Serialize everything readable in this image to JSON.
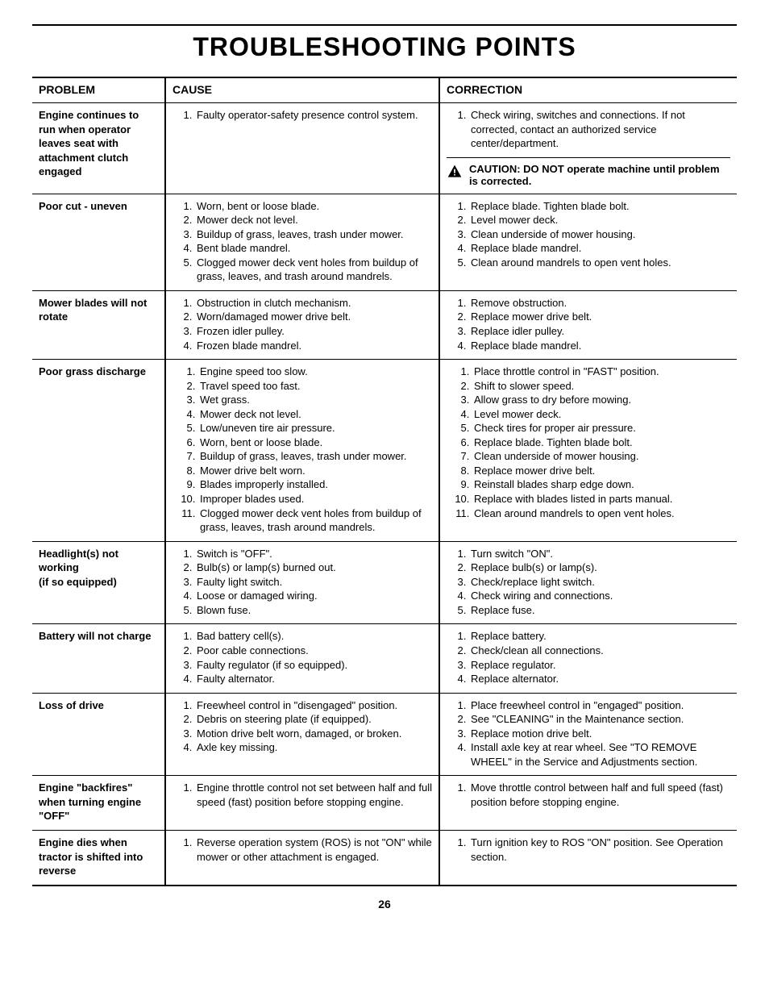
{
  "page": {
    "title": "TROUBLESHOOTING POINTS",
    "number": "26"
  },
  "headers": {
    "problem": "PROBLEM",
    "cause": "CAUSE",
    "correction": "CORRECTION"
  },
  "caution": "CAUTION: DO NOT operate machine until problem is corrected.",
  "rows": [
    {
      "problem": "Engine continues to run when operator leaves seat with attachment clutch engaged",
      "causes": [
        "Faulty operator-safety presence control system."
      ],
      "corrections": [
        "Check wiring, switches and connections. If not corrected, contact an authorized service center/department."
      ],
      "has_caution": true
    },
    {
      "problem": "Poor cut - uneven",
      "causes": [
        "Worn, bent or loose blade.",
        "Mower deck not level.",
        "Buildup of grass, leaves, trash under mower.",
        "Bent blade mandrel.",
        "Clogged mower deck vent holes from buildup of grass, leaves, and trash around mandrels."
      ],
      "corrections": [
        "Replace blade. Tighten blade bolt.",
        "Level mower deck.",
        "Clean underside of mower housing.",
        "Replace blade mandrel.",
        "Clean around mandrels to open vent holes."
      ]
    },
    {
      "problem": "Mower blades will not rotate",
      "causes": [
        "Obstruction in clutch mechanism.",
        "Worn/damaged mower drive belt.",
        "Frozen idler pulley.",
        "Frozen blade mandrel."
      ],
      "corrections": [
        "Remove obstruction.",
        "Replace mower drive belt.",
        "Replace idler pulley.",
        "Replace blade mandrel."
      ]
    },
    {
      "problem": "Poor grass discharge",
      "causes": [
        "Engine speed too slow.",
        "Travel speed too fast.",
        "Wet grass.",
        "Mower deck not level.",
        "Low/uneven tire air pressure.",
        "Worn, bent or loose blade.",
        "Buildup of grass, leaves, trash under mower.",
        "Mower drive belt worn.",
        "Blades improperly installed.",
        "Improper blades used.",
        "Clogged mower deck vent holes from buildup of grass, leaves, trash around mandrels."
      ],
      "corrections": [
        "Place throttle control in \"FAST\" position.",
        "Shift to slower speed.",
        "Allow grass to dry before mowing.",
        "Level mower deck.",
        "Check tires for proper air pressure.",
        "Replace blade. Tighten blade bolt.",
        "Clean underside of mower housing.",
        "Replace mower drive belt.",
        "Reinstall blades sharp edge down.",
        "Replace with blades listed in parts manual.",
        "Clean around mandrels to open vent holes."
      ]
    },
    {
      "problem": "Headlight(s) not working\n(if so equipped)",
      "causes": [
        "Switch is \"OFF\".",
        "Bulb(s) or lamp(s) burned out.",
        "Faulty light switch.",
        "Loose or damaged wiring.",
        "Blown fuse."
      ],
      "corrections": [
        "Turn switch \"ON\".",
        "Replace bulb(s) or lamp(s).",
        "Check/replace light switch.",
        "Check wiring and connections.",
        "Replace fuse."
      ]
    },
    {
      "problem": "Battery will not charge",
      "causes": [
        "Bad battery cell(s).",
        "Poor cable connections.",
        "Faulty regulator (if so equipped).",
        "Faulty alternator."
      ],
      "corrections": [
        "Replace battery.",
        "Check/clean all connections.",
        "Replace regulator.",
        "Replace alternator."
      ]
    },
    {
      "problem": "Loss of drive",
      "causes": [
        "Freewheel control in \"disengaged\" position.",
        "Debris on steering plate (if equipped).",
        "Motion drive belt worn, damaged, or broken.",
        "Axle key missing."
      ],
      "corrections": [
        "Place freewheel control in \"engaged\" position.",
        "See \"CLEANING\" in the Maintenance section.",
        "Replace motion drive belt.",
        "Install axle key at rear wheel. See \"TO REMOVE WHEEL\" in the Service and Adjustments section."
      ]
    },
    {
      "problem": "Engine \"backfires\" when turning engine \"OFF\"",
      "causes": [
        "Engine throttle control not set between half and full speed (fast) position before stopping engine."
      ],
      "corrections": [
        "Move throttle control between half and full speed (fast) position before stopping engine."
      ]
    },
    {
      "problem": "Engine dies when tractor is shifted into reverse",
      "causes": [
        "Reverse operation system (ROS) is not \"ON\" while mower or other attachment is engaged."
      ],
      "corrections": [
        "Turn ignition key to ROS \"ON\" position. See Operation section."
      ]
    }
  ]
}
